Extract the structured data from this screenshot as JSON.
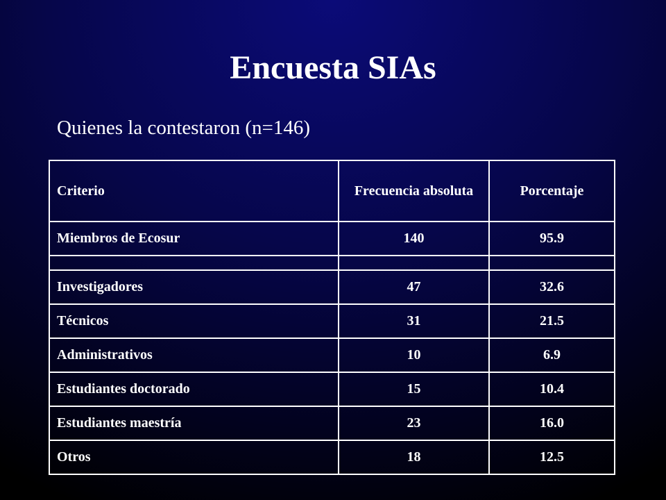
{
  "header": {
    "title": "Encuesta SIAs",
    "subtitle": "Quienes la contestaron (n=146)"
  },
  "table": {
    "columns": [
      "Criterio",
      "Frecuencia absoluta",
      "Porcentaje"
    ],
    "rows": [
      [
        "Miembros de Ecosur",
        "140",
        "95.9"
      ],
      [
        "Investigadores",
        "47",
        "32.6"
      ],
      [
        "Técnicos",
        "31",
        "21.5"
      ],
      [
        "Administrativos",
        "10",
        "6.9"
      ],
      [
        "Estudiantes doctorado",
        "15",
        "10.4"
      ],
      [
        "Estudiantes maestría",
        "23",
        "16.0"
      ],
      [
        "Otros",
        "18",
        "12.5"
      ]
    ]
  }
}
